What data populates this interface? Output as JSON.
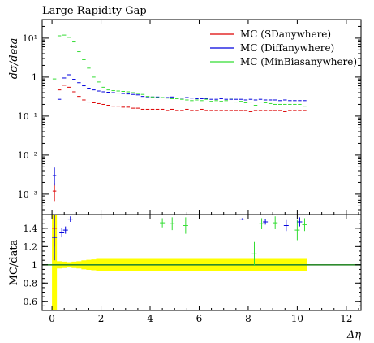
{
  "chart_data": {
    "type": "scatter",
    "title": "Large Rapidity Gap",
    "xlabel": "Δη",
    "main": {
      "ylabel": "dσ/deta",
      "yscale": "log",
      "ylim": [
        0.0003,
        30
      ],
      "yticks": [
        {
          "v": 0.001,
          "label": "10⁻³"
        },
        {
          "v": 0.01,
          "label": "10⁻²"
        },
        {
          "v": 0.1,
          "label": "10⁻¹"
        },
        {
          "v": 1,
          "label": "1"
        },
        {
          "v": 10,
          "label": "10¹"
        }
      ]
    },
    "ratio": {
      "ylabel": "MC/data",
      "ylim": [
        0.5,
        1.55
      ],
      "yticks": [
        {
          "v": 0.6,
          "label": "0.6"
        },
        {
          "v": 0.8,
          "label": "0.8"
        },
        {
          "v": 1.0,
          "label": "1"
        },
        {
          "v": 1.2,
          "label": "1.2"
        },
        {
          "v": 1.4,
          "label": "1.4"
        }
      ],
      "ref_color": "#2e8b2e",
      "band_color": "#ffff00",
      "band": [
        [
          0,
          2.0
        ],
        [
          0.2,
          1.04
        ],
        [
          0.4,
          1.035
        ],
        [
          0.6,
          1.03
        ],
        [
          0.8,
          1.035
        ],
        [
          1.0,
          1.04
        ],
        [
          1.2,
          1.05
        ],
        [
          1.4,
          1.055
        ],
        [
          1.6,
          1.06
        ],
        [
          1.8,
          1.065
        ],
        [
          2.0,
          1.065
        ],
        [
          3.0,
          1.065
        ],
        [
          4.0,
          1.065
        ],
        [
          5.0,
          1.065
        ],
        [
          6.0,
          1.065
        ],
        [
          7.0,
          1.065
        ],
        [
          8.0,
          1.065
        ],
        [
          9.0,
          1.065
        ],
        [
          10.4,
          1.065
        ]
      ],
      "points": [
        {
          "series": 0,
          "x": 0.1,
          "y": 1.4,
          "err": 0.2
        },
        {
          "series": 1,
          "x": 0.1,
          "y": 1.3,
          "err": 0.25
        },
        {
          "series": 1,
          "x": 0.4,
          "y": 1.35,
          "err": 0.05
        },
        {
          "series": 1,
          "x": 0.55,
          "y": 1.38,
          "err": 0.04
        },
        {
          "series": 1,
          "x": 0.75,
          "y": 1.5,
          "err": 0.03
        },
        {
          "series": 2,
          "x": 4.5,
          "y": 1.46,
          "err": 0.05
        },
        {
          "series": 2,
          "x": 4.9,
          "y": 1.45,
          "err": 0.07
        },
        {
          "series": 2,
          "x": 5.45,
          "y": 1.43,
          "err": 0.09
        },
        {
          "series": 1,
          "x": 7.75,
          "y": 1.5,
          "err": 0.01
        },
        {
          "series": 2,
          "x": 8.25,
          "y": 1.12,
          "err": 0.13
        },
        {
          "series": 2,
          "x": 8.55,
          "y": 1.45,
          "err": 0.06
        },
        {
          "series": 1,
          "x": 8.7,
          "y": 1.47,
          "err": 0.03
        },
        {
          "series": 2,
          "x": 9.1,
          "y": 1.46,
          "err": 0.07
        },
        {
          "series": 1,
          "x": 9.55,
          "y": 1.43,
          "err": 0.06
        },
        {
          "series": 2,
          "x": 10.0,
          "y": 1.38,
          "err": 0.11
        },
        {
          "series": 1,
          "x": 10.1,
          "y": 1.47,
          "err": 0.05
        },
        {
          "series": 2,
          "x": 10.3,
          "y": 1.44,
          "err": 0.07
        }
      ]
    },
    "x_range": [
      -0.4,
      12.6
    ],
    "xticks": [
      0,
      2,
      4,
      6,
      8,
      10,
      12
    ],
    "legend_position": "top-right",
    "series": [
      {
        "name": "MC (SDanywhere)",
        "color": "#dd0000",
        "x": [
          0.1,
          0.3,
          0.5,
          0.7,
          0.9,
          1.1,
          1.3,
          1.5,
          1.7,
          1.9,
          2.1,
          2.3,
          2.5,
          2.7,
          2.9,
          3.1,
          3.3,
          3.5,
          3.7,
          3.9,
          4.1,
          4.3,
          4.5,
          4.7,
          4.9,
          5.1,
          5.3,
          5.5,
          5.7,
          5.9,
          6.1,
          6.3,
          6.5,
          6.7,
          6.9,
          7.1,
          7.3,
          7.5,
          7.7,
          7.9,
          8.1,
          8.3,
          8.5,
          8.7,
          8.9,
          9.1,
          9.3,
          9.5,
          9.7,
          9.9,
          10.1,
          10.3
        ],
        "y": [
          0.0012,
          0.47,
          0.62,
          0.55,
          0.42,
          0.32,
          0.26,
          0.23,
          0.22,
          0.21,
          0.2,
          0.19,
          0.18,
          0.18,
          0.17,
          0.17,
          0.16,
          0.16,
          0.15,
          0.15,
          0.15,
          0.15,
          0.15,
          0.14,
          0.15,
          0.14,
          0.14,
          0.15,
          0.14,
          0.14,
          0.15,
          0.14,
          0.14,
          0.14,
          0.14,
          0.14,
          0.14,
          0.14,
          0.14,
          0.14,
          0.13,
          0.14,
          0.14,
          0.14,
          0.14,
          0.14,
          0.14,
          0.13,
          0.14,
          0.14,
          0.14,
          0.14
        ]
      },
      {
        "name": "MC (Diffanywhere)",
        "color": "#0000dd",
        "x": [
          0.1,
          0.3,
          0.5,
          0.7,
          0.9,
          1.1,
          1.3,
          1.5,
          1.7,
          1.9,
          2.1,
          2.3,
          2.5,
          2.7,
          2.9,
          3.1,
          3.3,
          3.5,
          3.7,
          3.9,
          4.1,
          4.3,
          4.5,
          4.7,
          4.9,
          5.1,
          5.3,
          5.5,
          5.7,
          5.9,
          6.1,
          6.3,
          6.5,
          6.7,
          6.9,
          7.1,
          7.3,
          7.5,
          7.7,
          7.9,
          8.1,
          8.3,
          8.5,
          8.7,
          8.9,
          9.1,
          9.3,
          9.5,
          9.7,
          9.9,
          10.1,
          10.3
        ],
        "y": [
          0.003,
          0.27,
          0.95,
          1.15,
          0.88,
          0.72,
          0.6,
          0.52,
          0.47,
          0.44,
          0.42,
          0.41,
          0.4,
          0.39,
          0.38,
          0.37,
          0.36,
          0.35,
          0.32,
          0.3,
          0.31,
          0.31,
          0.3,
          0.3,
          0.31,
          0.29,
          0.29,
          0.3,
          0.29,
          0.28,
          0.28,
          0.28,
          0.27,
          0.27,
          0.28,
          0.27,
          0.27,
          0.27,
          0.27,
          0.26,
          0.27,
          0.26,
          0.27,
          0.26,
          0.26,
          0.26,
          0.25,
          0.26,
          0.25,
          0.25,
          0.25,
          0.25
        ]
      },
      {
        "name": "MC (MinBiasanywhere)",
        "color": "#33dd33",
        "x": [
          0.1,
          0.3,
          0.5,
          0.7,
          0.9,
          1.1,
          1.3,
          1.5,
          1.7,
          1.9,
          2.1,
          2.3,
          2.5,
          2.7,
          2.9,
          3.1,
          3.3,
          3.5,
          3.7,
          3.9,
          4.1,
          4.3,
          4.5,
          4.7,
          4.9,
          5.1,
          5.3,
          5.5,
          5.7,
          5.9,
          6.1,
          6.3,
          6.5,
          6.7,
          6.9,
          7.1,
          7.3,
          7.5,
          7.7,
          7.9,
          8.1,
          8.3,
          8.5,
          8.7,
          8.9,
          9.1,
          9.3,
          9.5,
          9.7,
          9.9,
          10.1,
          10.3
        ],
        "y": [
          0.9,
          11.5,
          12.0,
          10.5,
          8.0,
          4.5,
          2.8,
          1.7,
          1.0,
          0.75,
          0.55,
          0.47,
          0.45,
          0.44,
          0.43,
          0.42,
          0.4,
          0.38,
          0.36,
          0.32,
          0.31,
          0.3,
          0.3,
          0.29,
          0.28,
          0.28,
          0.27,
          0.26,
          0.25,
          0.26,
          0.25,
          0.27,
          0.24,
          0.25,
          0.24,
          0.25,
          0.29,
          0.23,
          0.24,
          0.22,
          0.23,
          0.19,
          0.23,
          0.22,
          0.21,
          0.2,
          0.2,
          0.2,
          0.2,
          0.2,
          0.2,
          0.18
        ]
      }
    ]
  }
}
